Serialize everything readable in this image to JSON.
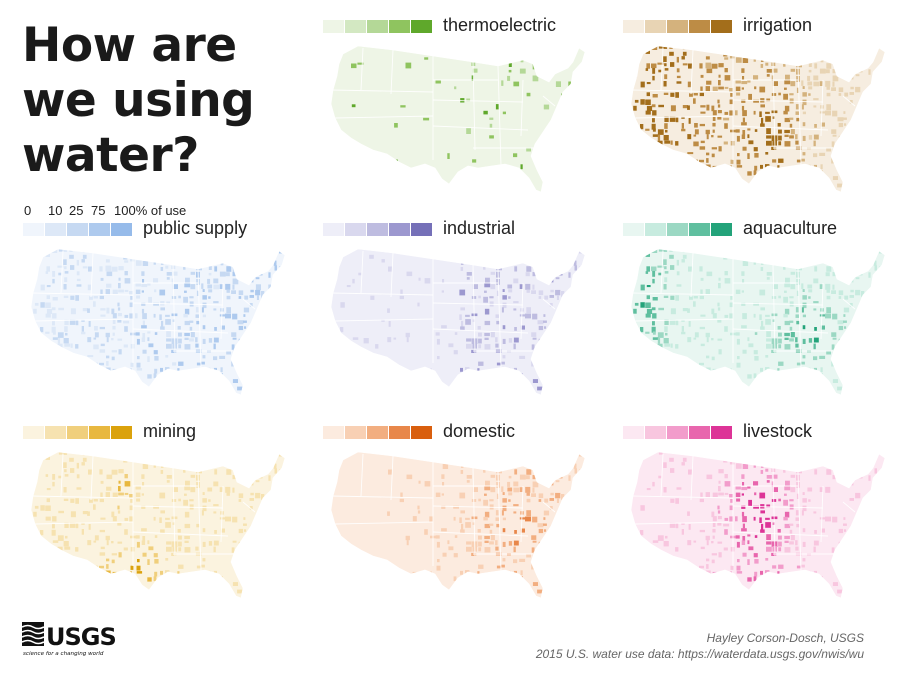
{
  "title_lines": [
    "How are",
    "we using",
    "water?"
  ],
  "legend": {
    "ticks": [
      "0",
      "10",
      "25",
      "75",
      "100% of use"
    ]
  },
  "panels": [
    {
      "label": "thermoelectric",
      "colors": [
        "#eef5e6",
        "#d3e8c2",
        "#b4d897",
        "#8fc45f",
        "#5fa82b"
      ],
      "pattern": "thermo"
    },
    {
      "label": "irrigation",
      "colors": [
        "#f6ede0",
        "#e8d4b4",
        "#d4b27d",
        "#bd8c45",
        "#a36e1b"
      ],
      "pattern": "irrigation"
    },
    {
      "label": "public supply",
      "colors": [
        "#f0f5fc",
        "#dde8f7",
        "#c6d9f2",
        "#aecaee",
        "#96bbea"
      ],
      "pattern": "public"
    },
    {
      "label": "industrial",
      "colors": [
        "#eeeef8",
        "#d9d8ee",
        "#bebce0",
        "#9c98cf",
        "#7570b8"
      ],
      "pattern": "industrial"
    },
    {
      "label": "aquaculture",
      "colors": [
        "#e8f6f1",
        "#c7ebdf",
        "#9bd8c3",
        "#5fbf9f",
        "#23a37a"
      ],
      "pattern": "aqua"
    },
    {
      "label": "mining",
      "colors": [
        "#fbf3df",
        "#f6e2b0",
        "#f0cf7c",
        "#e8b840",
        "#dba20c"
      ],
      "pattern": "mining"
    },
    {
      "label": "domestic",
      "colors": [
        "#fcebdf",
        "#f8d0b4",
        "#f2ae80",
        "#e8874a",
        "#d95f0e"
      ],
      "pattern": "domestic"
    },
    {
      "label": "livestock",
      "colors": [
        "#fce8f2",
        "#f8c6df",
        "#f29ccb",
        "#e866ad",
        "#dd3497"
      ],
      "pattern": "livestock"
    }
  ],
  "credits": {
    "author": "Hayley Corson-Dosch, USGS",
    "source": "2015 U.S. water use data: https://waterdata.usgs.gov/nwis/wu"
  },
  "logo": {
    "wordmark": "USGS",
    "tagline": "science for a changing world"
  }
}
